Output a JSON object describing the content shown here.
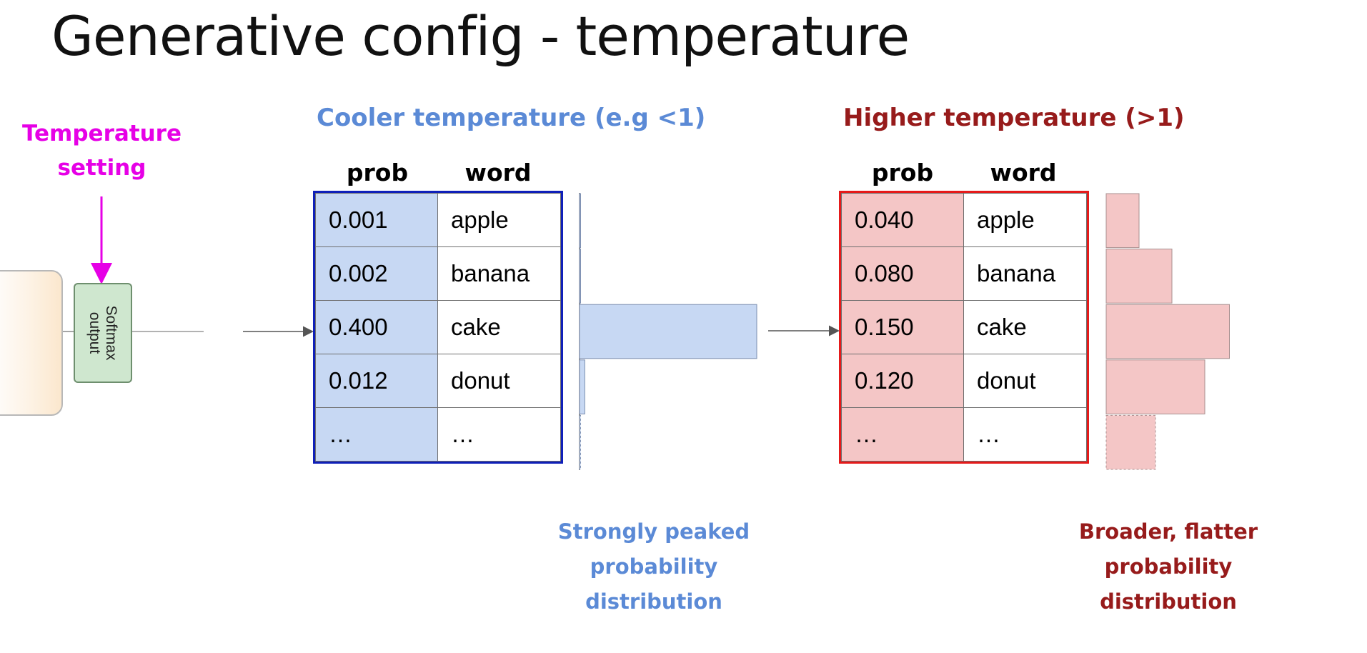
{
  "title": "Generative config - temperature",
  "temperature_setting": {
    "line1": "Temperature",
    "line2": "setting",
    "color": "#e600e6"
  },
  "softmax": {
    "line1": "Softmax",
    "line2": "output"
  },
  "cool": {
    "title": "Cooler temperature (e.g <1)",
    "color": "#5b8ad6",
    "border_color": "#0f1fb8",
    "headers": {
      "prob": "prob",
      "word": "word"
    },
    "rows": [
      {
        "prob": "0.001",
        "word": "apple",
        "value": 0.001
      },
      {
        "prob": "0.002",
        "word": "banana",
        "value": 0.002
      },
      {
        "prob": "0.400",
        "word": "cake",
        "value": 0.4
      },
      {
        "prob": "0.012",
        "word": "donut",
        "value": 0.012
      },
      {
        "prob": "…",
        "word": "…",
        "value": 0.001
      }
    ],
    "caption": {
      "line1": "Strongly peaked",
      "line2": "probability",
      "line3": "distribution"
    }
  },
  "hot": {
    "title": "Higher temperature (>1)",
    "color": "#971b1b",
    "border_color": "#e51a1a",
    "headers": {
      "prob": "prob",
      "word": "word"
    },
    "rows": [
      {
        "prob": "0.040",
        "word": "apple",
        "value": 0.04
      },
      {
        "prob": "0.080",
        "word": "banana",
        "value": 0.08
      },
      {
        "prob": "0.150",
        "word": "cake",
        "value": 0.15
      },
      {
        "prob": "0.120",
        "word": "donut",
        "value": 0.12
      },
      {
        "prob": "…",
        "word": "…",
        "value": 0.06
      }
    ],
    "caption": {
      "line1": "Broader, flatter",
      "line2": "probability",
      "line3": "distribution"
    }
  }
}
